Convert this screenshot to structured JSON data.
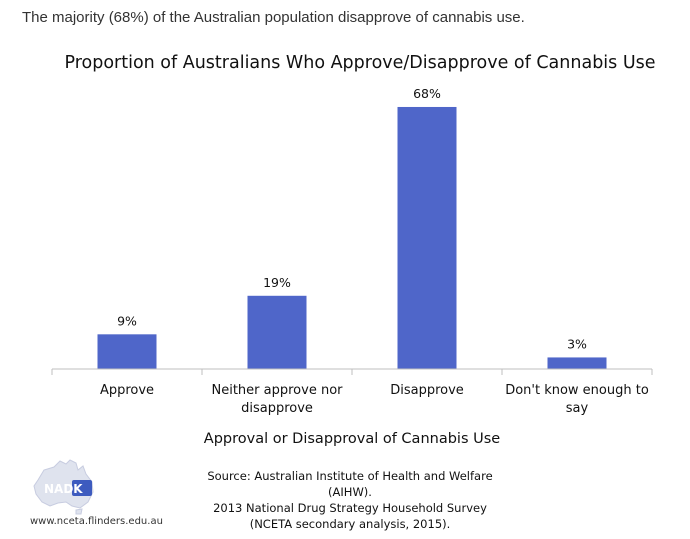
{
  "caption": "The majority (68%) of the Australian population disapprove of cannabis use.",
  "chart_data": {
    "type": "bar",
    "title": "Proportion of Australians Who Approve/Disapprove of Cannabis Use",
    "xlabel": "Approval or Disapproval of Cannabis Use",
    "ylabel": "",
    "categories": [
      [
        "Approve"
      ],
      [
        "Neither approve nor",
        "disapprove"
      ],
      [
        "Disapprove"
      ],
      [
        "Don't know enough to",
        "say"
      ]
    ],
    "values": [
      9,
      19,
      68,
      3
    ],
    "data_labels": [
      "9%",
      "19%",
      "68%",
      "3%"
    ],
    "ylim": [
      0,
      75
    ],
    "grid": false,
    "bar_color": "#4f66c9"
  },
  "source": {
    "line1": "Source: Australian Institute of Health and Welfare (AIHW).",
    "line2": "2013 National Drug Strategy Household Survey",
    "line3": "(NCETA secondary analysis, 2015)."
  },
  "logo": {
    "text": "NADK",
    "icon": "australia-map-logo"
  },
  "url": "www.nceta.flinders.edu.au"
}
